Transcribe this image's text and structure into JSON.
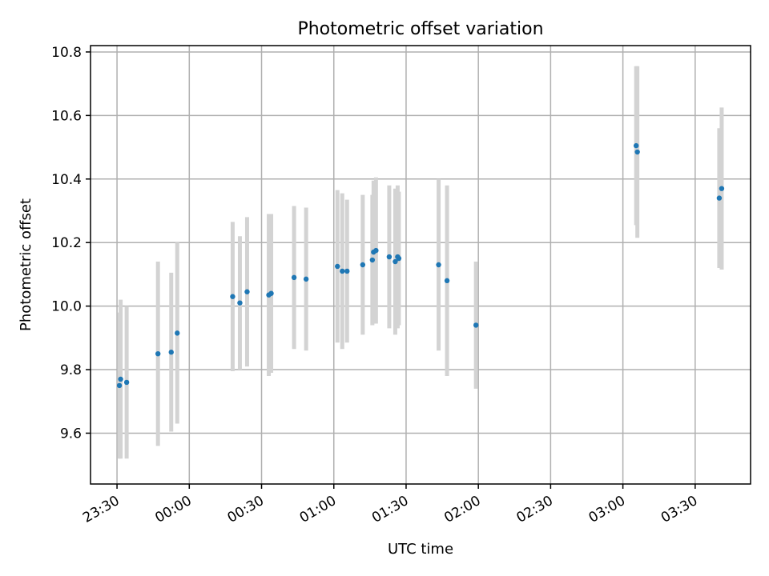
{
  "chart_data": {
    "type": "scatter",
    "title": "Photometric offset variation",
    "xlabel": "UTC time",
    "ylabel": "Photometric offset",
    "x_unit": "minutes relative to 23:30 UTC",
    "xlim": [
      -11,
      263
    ],
    "ylim": [
      9.44,
      10.82
    ],
    "grid": true,
    "xticks": [
      {
        "value": 0,
        "label": "23:30"
      },
      {
        "value": 30,
        "label": "00:00"
      },
      {
        "value": 60,
        "label": "00:30"
      },
      {
        "value": 90,
        "label": "01:00"
      },
      {
        "value": 120,
        "label": "01:30"
      },
      {
        "value": 150,
        "label": "02:00"
      },
      {
        "value": 180,
        "label": "02:30"
      },
      {
        "value": 210,
        "label": "03:00"
      },
      {
        "value": 240,
        "label": "03:30"
      }
    ],
    "yticks": [
      {
        "value": 9.6,
        "label": "9.6"
      },
      {
        "value": 9.8,
        "label": "9.8"
      },
      {
        "value": 10.0,
        "label": "10.0"
      },
      {
        "value": 10.2,
        "label": "10.2"
      },
      {
        "value": 10.4,
        "label": "10.4"
      },
      {
        "value": 10.6,
        "label": "10.6"
      },
      {
        "value": 10.8,
        "label": "10.8"
      }
    ],
    "series": [
      {
        "name": "offset",
        "marker_color": "#1f77b4",
        "errorbar_color": "#d3d3d3",
        "points": [
          {
            "x": 1.0,
            "y": 9.75,
            "err": 0.23
          },
          {
            "x": 1.5,
            "y": 9.77,
            "err": 0.25
          },
          {
            "x": 4.0,
            "y": 9.76,
            "err": 0.24
          },
          {
            "x": 17.0,
            "y": 9.85,
            "err": 0.29
          },
          {
            "x": 22.5,
            "y": 9.855,
            "err": 0.25
          },
          {
            "x": 25.0,
            "y": 9.915,
            "err": 0.285
          },
          {
            "x": 48.0,
            "y": 10.03,
            "err": 0.235
          },
          {
            "x": 51.0,
            "y": 10.01,
            "err": 0.21
          },
          {
            "x": 54.0,
            "y": 10.045,
            "err": 0.235
          },
          {
            "x": 63.0,
            "y": 10.035,
            "err": 0.255
          },
          {
            "x": 64.0,
            "y": 10.04,
            "err": 0.25
          },
          {
            "x": 73.5,
            "y": 10.09,
            "err": 0.225
          },
          {
            "x": 78.5,
            "y": 10.085,
            "err": 0.225
          },
          {
            "x": 91.5,
            "y": 10.125,
            "err": 0.24
          },
          {
            "x": 93.5,
            "y": 10.11,
            "err": 0.245
          },
          {
            "x": 95.5,
            "y": 10.11,
            "err": 0.225
          },
          {
            "x": 102.0,
            "y": 10.13,
            "err": 0.22
          },
          {
            "x": 106.0,
            "y": 10.145,
            "err": 0.205
          },
          {
            "x": 106.5,
            "y": 10.17,
            "err": 0.225
          },
          {
            "x": 107.5,
            "y": 10.175,
            "err": 0.23
          },
          {
            "x": 113.0,
            "y": 10.155,
            "err": 0.225
          },
          {
            "x": 115.5,
            "y": 10.14,
            "err": 0.23
          },
          {
            "x": 116.5,
            "y": 10.155,
            "err": 0.225
          },
          {
            "x": 117.0,
            "y": 10.15,
            "err": 0.21
          },
          {
            "x": 133.5,
            "y": 10.13,
            "err": 0.27
          },
          {
            "x": 137.0,
            "y": 10.08,
            "err": 0.3
          },
          {
            "x": 149.0,
            "y": 9.94,
            "err": 0.2
          },
          {
            "x": 215.5,
            "y": 10.505,
            "err": 0.25
          },
          {
            "x": 216.0,
            "y": 10.485,
            "err": 0.27
          },
          {
            "x": 250.0,
            "y": 10.34,
            "err": 0.22
          },
          {
            "x": 251.0,
            "y": 10.37,
            "err": 0.255
          }
        ]
      }
    ]
  }
}
